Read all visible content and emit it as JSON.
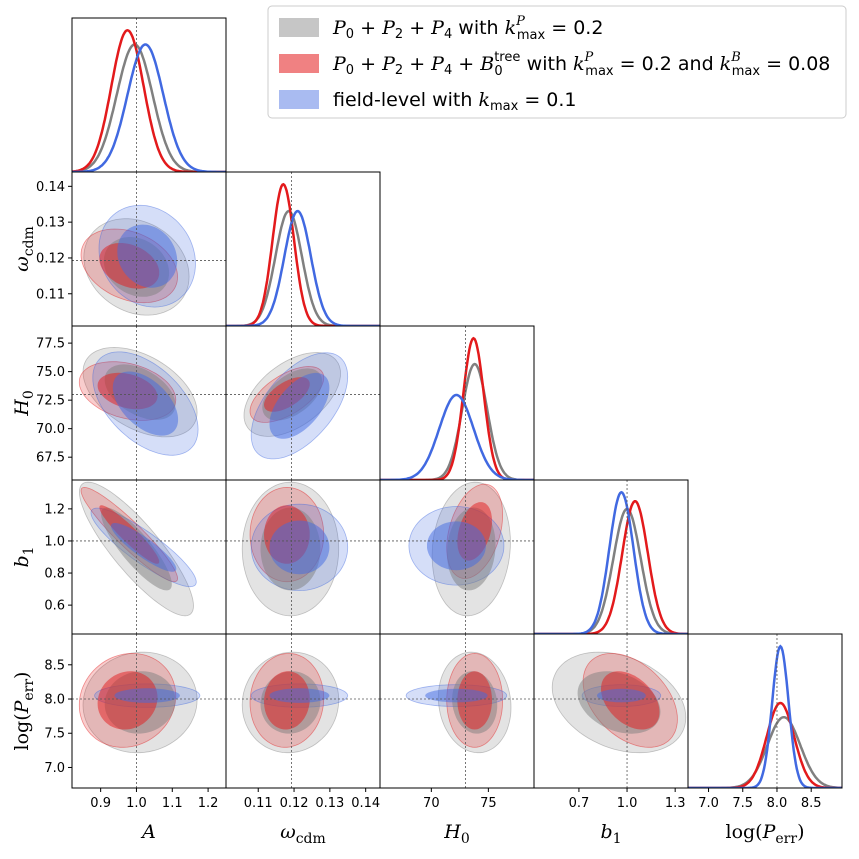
{
  "chart_data": {
    "type": "corner",
    "parameters": [
      {
        "key": "A",
        "label": "A",
        "range": [
          0.82,
          1.25
        ],
        "ticks": [
          0.9,
          1.0,
          1.1,
          1.2
        ],
        "tick_labels": [
          "0.9",
          "1.0",
          "1.1",
          "1.2"
        ],
        "truth": 1.0
      },
      {
        "key": "omega_cdm",
        "label": "ω_cdm",
        "range": [
          0.101,
          0.144
        ],
        "ticks": [
          0.11,
          0.12,
          0.13,
          0.14
        ],
        "tick_labels": [
          "0.11",
          "0.12",
          "0.13",
          "0.14"
        ],
        "truth": 0.1193
      },
      {
        "key": "H0",
        "label": "H_0",
        "range": [
          65.5,
          79.0
        ],
        "ticks": [
          67.5,
          70.0,
          72.5,
          75.0,
          77.5
        ],
        "tick_labels": [
          "67.5",
          "70.0",
          "72.5",
          "75.0",
          "77.5"
        ],
        "x_ticks": [
          70,
          75
        ],
        "x_tick_labels": [
          "70",
          "75"
        ],
        "truth": 73.0
      },
      {
        "key": "b1",
        "label": "b_1",
        "range": [
          0.42,
          1.38
        ],
        "ticks": [
          0.6,
          0.8,
          1.0,
          1.2
        ],
        "tick_labels": [
          "0.6",
          "0.8",
          "1.0",
          "1.2"
        ],
        "x_ticks": [
          0.7,
          1.0,
          1.3
        ],
        "x_tick_labels": [
          "0.7",
          "1.0",
          "1.3"
        ],
        "truth": 1.0
      },
      {
        "key": "logPerr",
        "label": "log(P_err)",
        "range": [
          6.7,
          8.95
        ],
        "ticks": [
          7.0,
          7.5,
          8.0,
          8.5
        ],
        "tick_labels": [
          "7.0",
          "7.5",
          "8.0",
          "8.5"
        ],
        "truth": 8.0
      }
    ],
    "series": [
      {
        "name": "P_0 + P_2 + P_4 with k^P_max = 0.2",
        "color": "#808080",
        "marginals": {
          "A": {
            "mean": 0.995,
            "sigma": 0.05
          },
          "omega_cdm": {
            "mean": 0.1185,
            "sigma": 0.0037
          },
          "H0": {
            "mean": 73.8,
            "sigma": 1.1
          },
          "b1": {
            "mean": 1.0,
            "sigma": 0.085
          },
          "logPerr": {
            "mean": 8.1,
            "sigma": 0.24
          }
        },
        "pairs": {
          "A|omega_cdm": {
            "mean": [
              1.0,
              0.1175
            ],
            "sigma": [
              0.06,
              0.0055
            ],
            "rho": -0.2
          },
          "A|H0": {
            "mean": [
              1.01,
              73.2
            ],
            "sigma": [
              0.065,
              1.6
            ],
            "rho": -0.45
          },
          "A|b1": {
            "mean": [
              1.0,
              0.95
            ],
            "sigma": [
              0.065,
              0.17
            ],
            "rho": -0.85
          },
          "A|logPerr": {
            "mean": [
              1.01,
              7.95
            ],
            "sigma": [
              0.065,
              0.3
            ],
            "rho": 0.05
          },
          "omega_cdm|H0": {
            "mean": [
              0.1195,
              73.0
            ],
            "sigma": [
              0.0055,
              1.5
            ],
            "rho": 0.5
          },
          "omega_cdm|b1": {
            "mean": [
              0.119,
              0.95
            ],
            "sigma": [
              0.0055,
              0.17
            ],
            "rho": 0.0
          },
          "omega_cdm|logPerr": {
            "mean": [
              0.119,
              7.95
            ],
            "sigma": [
              0.0055,
              0.3
            ],
            "rho": 0.05
          },
          "H0|b1": {
            "mean": [
              73.5,
              0.95
            ],
            "sigma": [
              1.4,
              0.17
            ],
            "rho": 0.1
          },
          "H0|logPerr": {
            "mean": [
              73.8,
              7.95
            ],
            "sigma": [
              1.3,
              0.3
            ],
            "rho": -0.1
          },
          "b1|logPerr": {
            "mean": [
              0.95,
              7.95
            ],
            "sigma": [
              0.17,
              0.3
            ],
            "rho": -0.3
          }
        }
      },
      {
        "name": "P_0 + P_2 + P_4 + B_0^tree with k^P_max = 0.2 and k^B_max = 0.08",
        "color": "#e31a1c",
        "marginals": {
          "A": {
            "mean": 0.975,
            "sigma": 0.045
          },
          "omega_cdm": {
            "mean": 0.117,
            "sigma": 0.003
          },
          "H0": {
            "mean": 73.7,
            "sigma": 0.9
          },
          "b1": {
            "mean": 1.05,
            "sigma": 0.08
          },
          "logPerr": {
            "mean": 8.05,
            "sigma": 0.2
          }
        },
        "pairs": {
          "A|omega_cdm": {
            "mean": [
              0.98,
              0.1178
            ],
            "sigma": [
              0.055,
              0.0042
            ],
            "rho": -0.3
          },
          "A|H0": {
            "mean": [
              0.975,
              73.3
            ],
            "sigma": [
              0.055,
              1.05
            ],
            "rho": -0.3
          },
          "A|b1": {
            "mean": [
              0.98,
              1.04
            ],
            "sigma": [
              0.055,
              0.12
            ],
            "rho": -0.93
          },
          "A|logPerr": {
            "mean": [
              0.975,
              7.98
            ],
            "sigma": [
              0.055,
              0.28
            ],
            "rho": 0.1
          },
          "omega_cdm|H0": {
            "mean": [
              0.118,
              73.0
            ],
            "sigma": [
              0.0042,
              1.0
            ],
            "rho": 0.6
          },
          "omega_cdm|b1": {
            "mean": [
              0.118,
              1.04
            ],
            "sigma": [
              0.0042,
              0.12
            ],
            "rho": 0.0
          },
          "omega_cdm|logPerr": {
            "mean": [
              0.118,
              7.98
            ],
            "sigma": [
              0.0042,
              0.28
            ],
            "rho": 0.05
          },
          "H0|b1": {
            "mean": [
              73.8,
              1.06
            ],
            "sigma": [
              1.0,
              0.12
            ],
            "rho": 0.35
          },
          "H0|logPerr": {
            "mean": [
              73.8,
              7.98
            ],
            "sigma": [
              1.0,
              0.28
            ],
            "rho": 0.0
          },
          "b1|logPerr": {
            "mean": [
              1.02,
              7.98
            ],
            "sigma": [
              0.12,
              0.28
            ],
            "rho": -0.4
          }
        }
      },
      {
        "name": "field-level with k_max = 0.1",
        "color": "#4169e1",
        "marginals": {
          "A": {
            "mean": 1.025,
            "sigma": 0.05
          },
          "omega_cdm": {
            "mean": 0.121,
            "sigma": 0.0037
          },
          "H0": {
            "mean": 72.2,
            "sigma": 1.5
          },
          "b1": {
            "mean": 0.965,
            "sigma": 0.075
          },
          "logPerr": {
            "mean": 8.05,
            "sigma": 0.12
          }
        },
        "pairs": {
          "A|omega_cdm": {
            "mean": [
              1.03,
              0.1205
            ],
            "sigma": [
              0.055,
              0.0058
            ],
            "rho": -0.15
          },
          "A|H0": {
            "mean": [
              1.025,
              72.2
            ],
            "sigma": [
              0.06,
              1.85
            ],
            "rho": -0.5
          },
          "A|b1": {
            "mean": [
              1.02,
              0.96
            ],
            "sigma": [
              0.06,
              0.1
            ],
            "rho": -0.88
          },
          "A|logPerr": {
            "mean": [
              1.03,
              8.05
            ],
            "sigma": [
              0.06,
              0.07
            ],
            "rho": 0.0
          },
          "omega_cdm|H0": {
            "mean": [
              0.1215,
              72.0
            ],
            "sigma": [
              0.0055,
              1.9
            ],
            "rho": 0.55
          },
          "omega_cdm|b1": {
            "mean": [
              0.1215,
              0.96
            ],
            "sigma": [
              0.0055,
              0.11
            ],
            "rho": 0.0
          },
          "omega_cdm|logPerr": {
            "mean": [
              0.1215,
              8.05
            ],
            "sigma": [
              0.0055,
              0.07
            ],
            "rho": 0.0
          },
          "H0|b1": {
            "mean": [
              72.2,
              0.97
            ],
            "sigma": [
              1.7,
              0.1
            ],
            "rho": 0.0
          },
          "H0|logPerr": {
            "mean": [
              72.2,
              8.05
            ],
            "sigma": [
              1.8,
              0.065
            ],
            "rho": 0.0
          },
          "b1|logPerr": {
            "mean": [
              0.965,
              8.05
            ],
            "sigma": [
              0.1,
              0.065
            ],
            "rho": 0.0
          }
        }
      }
    ],
    "contour_levels": [
      "1-sigma",
      "2-sigma"
    ],
    "truth_lines": "dotted",
    "legend_placement": "top-right"
  }
}
